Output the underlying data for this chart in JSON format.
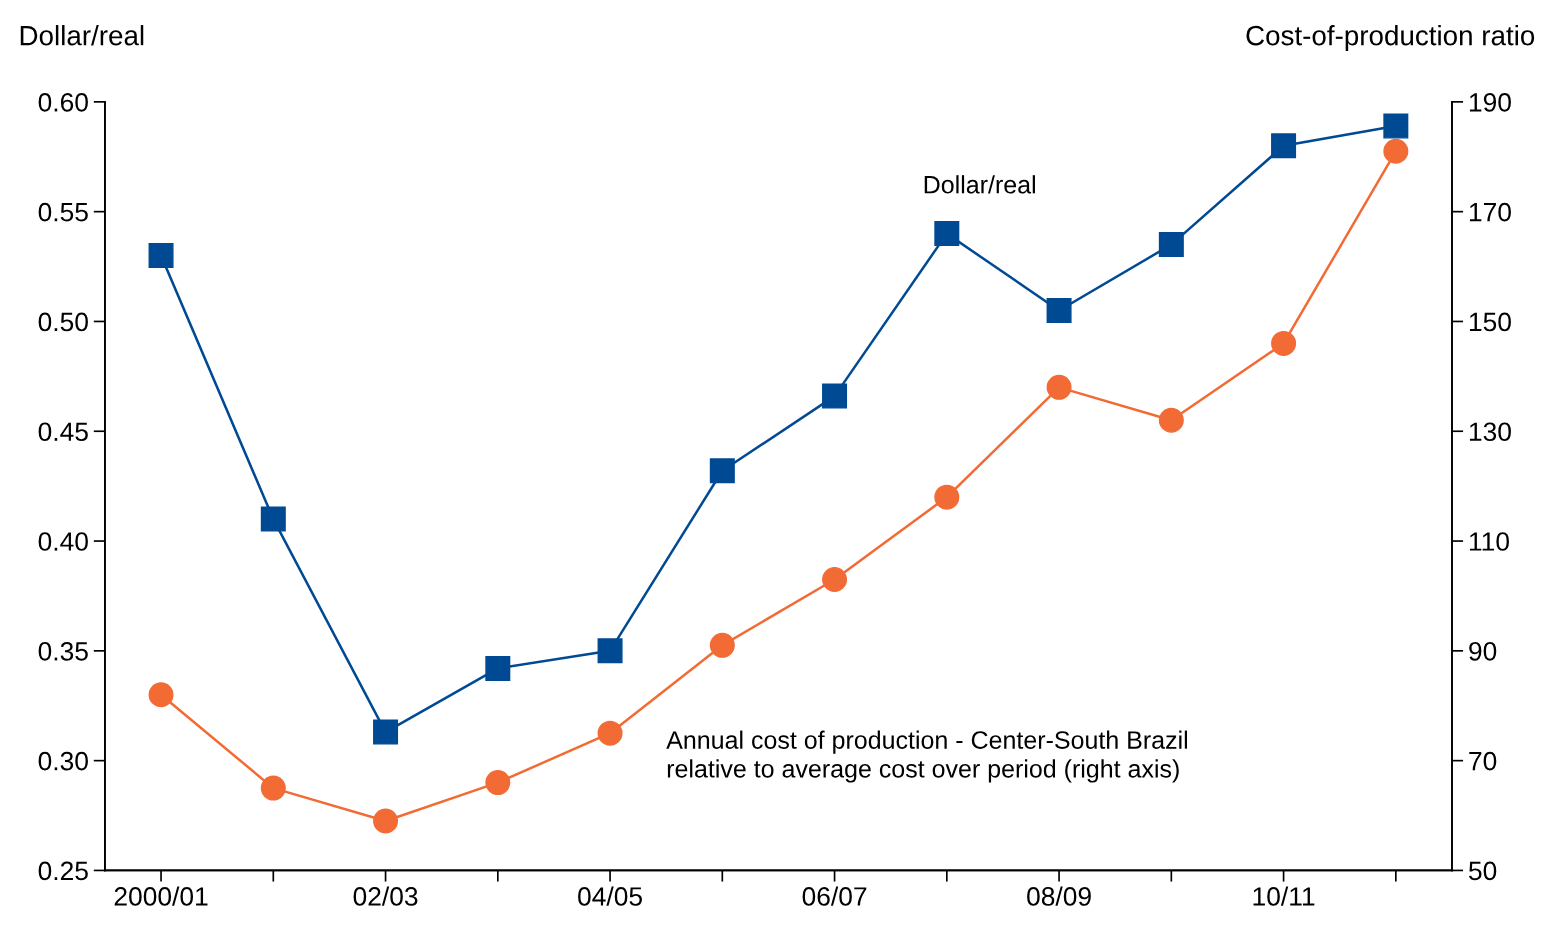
{
  "chart_data": {
    "type": "line",
    "ylabel": "Dollar/real",
    "y2label": "Cost-of-production ratio",
    "categories": [
      "2000/01",
      null,
      "02/03",
      null,
      "04/05",
      null,
      "06/07",
      null,
      "08/09",
      null,
      "10/11",
      null
    ],
    "series": [
      {
        "color": "#004a93",
        "marker": "square",
        "values": [
          0.53,
          0.41,
          0.313,
          0.342,
          0.35,
          0.432,
          0.466,
          0.54,
          0.505,
          0.535,
          0.58,
          0.589
        ]
      },
      {
        "color": "#f26b35",
        "marker": "circle",
        "axis": "y2",
        "values": [
          82,
          65,
          59,
          66,
          75,
          91,
          103,
          118,
          138,
          132,
          146,
          181
        ]
      }
    ],
    "ylim": [
      0.25,
      0.6
    ],
    "yticks": [
      {
        "value": 0.25,
        "label": "0.25"
      },
      {
        "value": 0.3,
        "label": "0.30"
      },
      {
        "value": 0.35,
        "label": "0.35"
      },
      {
        "value": 0.4,
        "label": "0.40"
      },
      {
        "value": 0.45,
        "label": "0.45"
      },
      {
        "value": 0.5,
        "label": "0.50"
      },
      {
        "value": 0.55,
        "label": "0.55"
      },
      {
        "value": 0.6,
        "label": "0.60"
      }
    ],
    "y2lim": [
      50,
      190
    ],
    "y2ticks": [
      50,
      70,
      90,
      110,
      130,
      150,
      170,
      190
    ],
    "annotations": [
      "Dollar/real",
      "Annual cost of production - Center-South Brazil\nrelative to average cost over period (right axis)"
    ],
    "grid": false,
    "legend": false,
    "line_style": "solid"
  }
}
